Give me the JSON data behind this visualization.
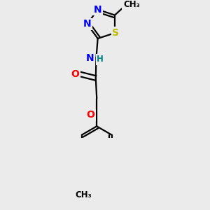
{
  "bg_color": "#ebebeb",
  "bond_color": "#000000",
  "bond_width": 1.6,
  "atom_colors": {
    "N": "#0000ff",
    "S": "#bbbb00",
    "O": "#ff0000",
    "H": "#008080",
    "C": "#000000"
  },
  "font_size_atom": 10,
  "font_size_small": 8.5
}
